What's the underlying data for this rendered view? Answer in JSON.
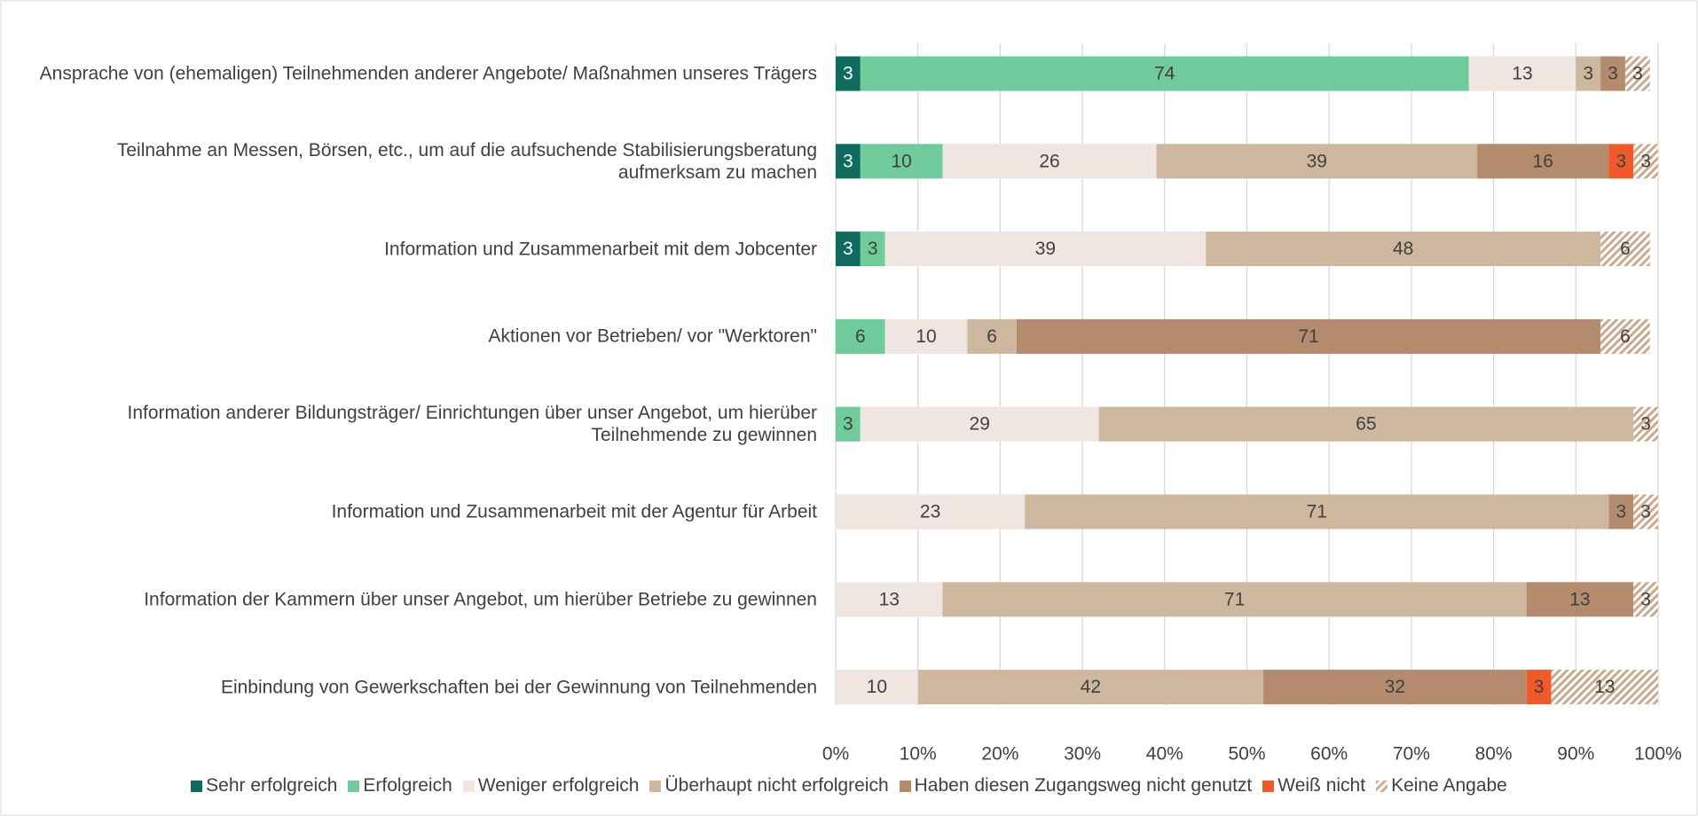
{
  "chart_data": {
    "type": "stacked-barh",
    "categories": [
      "Ansprache von (ehemaligen) Teilnehmenden anderer Angebote/ Maßnahmen unseres Trägers",
      "Teilnahme an Messen, Börsen, etc., um auf die aufsuchende Stabilisierungsberatung aufmerksam zu machen",
      "Information und Zusammenarbeit mit dem Jobcenter",
      "Aktionen vor Betrieben/ vor \"Werktoren\"",
      "Information anderer Bildungsträger/ Einrichtungen über unser Angebot, um hierüber Teilnehmende zu gewinnen",
      "Information und Zusammenarbeit mit der Agentur für Arbeit",
      "Information der Kammern über unser Angebot, um hierüber Betriebe zu gewinnen",
      "Einbindung von Gewerkschaften bei der Gewinnung von Teilnehmenden"
    ],
    "series": [
      {
        "name": "Sehr erfolgreich",
        "color": "#0e6b5e",
        "values": [
          3,
          3,
          3,
          null,
          null,
          null,
          null,
          null
        ]
      },
      {
        "name": "Erfolgreich",
        "color": "#6fcb9a",
        "values": [
          74,
          10,
          3,
          6,
          3,
          null,
          null,
          null
        ]
      },
      {
        "name": "Weniger erfolgreich",
        "color": "#efe6e1",
        "values": [
          13,
          26,
          39,
          10,
          29,
          23,
          13,
          10
        ]
      },
      {
        "name": "Überhaupt nicht erfolgreich",
        "color": "#cdb89f",
        "values": [
          3,
          39,
          48,
          6,
          65,
          71,
          71,
          42
        ]
      },
      {
        "name": "Haben diesen Zugangsweg nicht genutzt",
        "color": "#b58b6d",
        "values": [
          3,
          16,
          null,
          71,
          null,
          3,
          13,
          32
        ]
      },
      {
        "name": "Weiß nicht",
        "color": "#f05a2a",
        "values": [
          null,
          3,
          null,
          null,
          null,
          null,
          null,
          3
        ]
      },
      {
        "name": "Keine Angabe",
        "color": "#c9aa8e",
        "pattern": "hatch",
        "values": [
          3,
          3,
          6,
          6,
          3,
          3,
          3,
          13
        ]
      }
    ],
    "xlim": [
      0,
      100
    ],
    "xticks": [
      {
        "value": 0,
        "label": "0%"
      },
      {
        "value": 10,
        "label": "10%"
      },
      {
        "value": 20,
        "label": "20%"
      },
      {
        "value": 30,
        "label": "30%"
      },
      {
        "value": 40,
        "label": "40%"
      },
      {
        "value": 50,
        "label": "50%"
      },
      {
        "value": 60,
        "label": "60%"
      },
      {
        "value": 70,
        "label": "70%"
      },
      {
        "value": 80,
        "label": "80%"
      },
      {
        "value": 90,
        "label": "90%"
      },
      {
        "value": 100,
        "label": "100%"
      }
    ],
    "grid": true,
    "legend": "bottom"
  }
}
